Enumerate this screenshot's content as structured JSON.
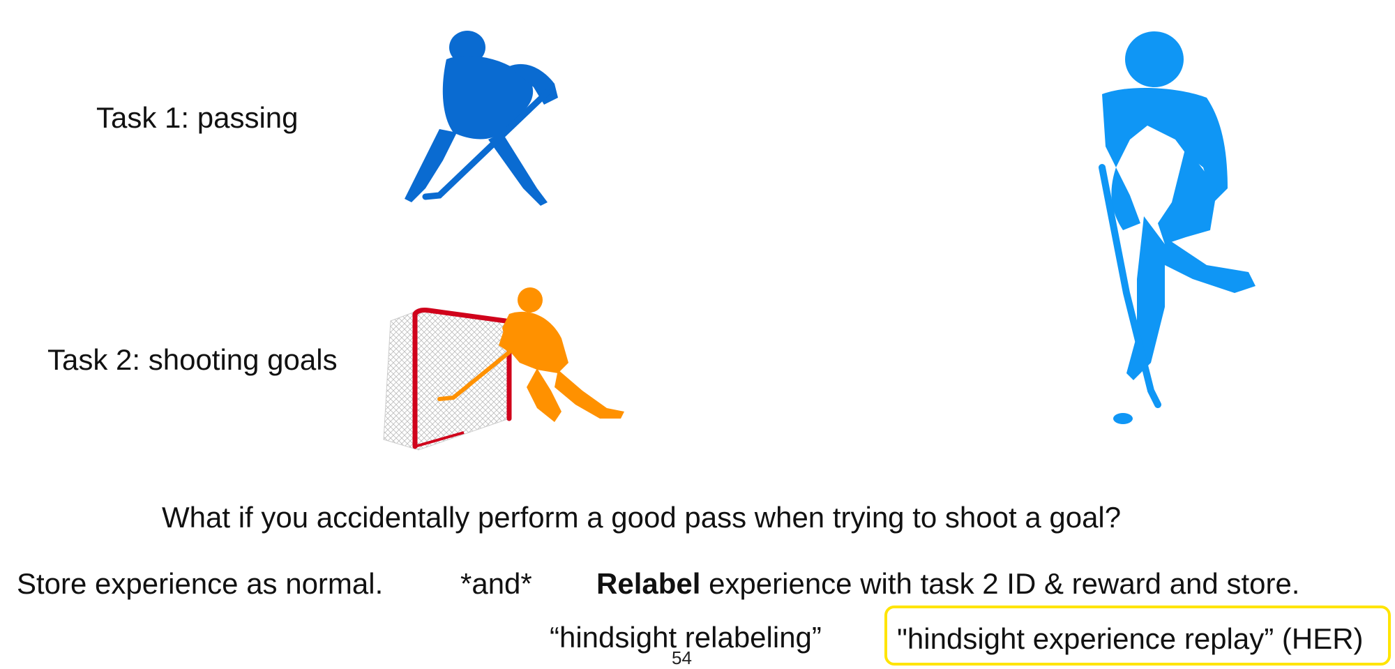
{
  "tasks": [
    {
      "label": "Task 1: passing"
    },
    {
      "label": "Task 2: shooting goals"
    }
  ],
  "question": "What if you accidentally perform a good pass when trying to shoot a goal?",
  "store_line": {
    "normal": "Store experience as normal.",
    "conjunction": "*and*",
    "relabel_bold": "Relabel",
    "relabel_rest": " experience with task 2 ID & reward and store."
  },
  "terms": {
    "hindsight_relabeling": "“hindsight relabeling”",
    "her": "\"hindsight experience replay” (HER)"
  },
  "page_number": "54",
  "colors": {
    "passer": "#0a6bd1",
    "shooter": "#ff9100",
    "skater": "#0f96f5",
    "net_frame": "#d0021b",
    "highlight_box": "#ffe400"
  },
  "icons": [
    "hockey-passer-icon",
    "hockey-shooter-icon",
    "hockey-net-icon",
    "hockey-skater-icon"
  ]
}
